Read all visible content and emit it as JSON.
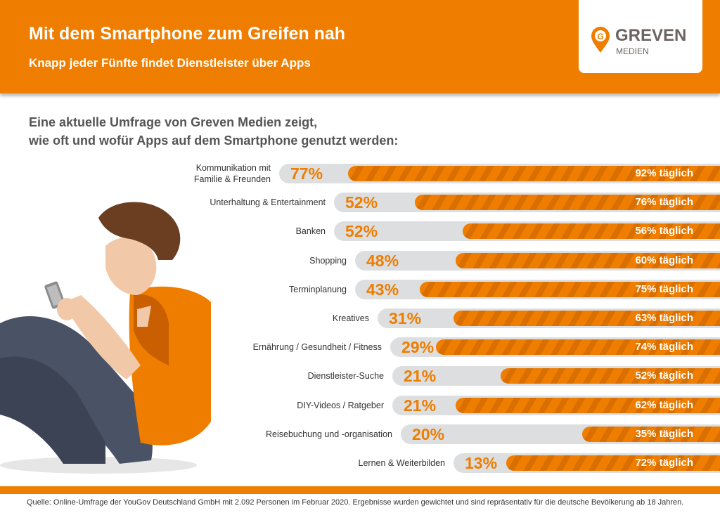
{
  "header": {
    "title": "Mit dem Smartphone zum Greifen nah",
    "subtitle": "Knapp jeder Fünfte findet Dienstleister über Apps"
  },
  "logo": {
    "name": "GREVEN",
    "sub": "MEDIEN",
    "letter": "G"
  },
  "intro": {
    "line1": "Eine aktuelle Umfrage von Greven Medien zeigt,",
    "line2": "wie oft und wofür Apps auf dem Smartphone genutzt werden:"
  },
  "colors": {
    "accent": "#ef7d00",
    "track": "#dcdee0"
  },
  "chart_data": {
    "type": "bar",
    "categories": [
      "Kommunikation mit Familie & Freunden",
      "Unterhaltung & Entertainment",
      "Banken",
      "Shopping",
      "Terminplanung",
      "Kreatives",
      "Ernährung / Gesundheit / Fitness",
      "Dienstleister-Suche",
      "DIY-Videos / Ratgeber",
      "Reisebuchung und -organisation",
      "Lernen & Weiterbilden"
    ],
    "series": [
      {
        "values": [
          77,
          52,
          52,
          48,
          43,
          31,
          29,
          21,
          21,
          20,
          13
        ]
      },
      {
        "values": [
          92,
          76,
          56,
          60,
          75,
          63,
          74,
          52,
          62,
          35,
          72
        ]
      }
    ],
    "value_labels": [
      "77%",
      "52%",
      "52%",
      "48%",
      "43%",
      "31%",
      "29%",
      "21%",
      "21%",
      "20%",
      "13%"
    ],
    "daily_labels": [
      "92% täglich",
      "76% täglich",
      "56% täglich",
      "60% täglich",
      "75% täglich",
      "63% täglich",
      "74% täglich",
      "52% täglich",
      "62% täglich",
      "35% täglich",
      "72% täglich"
    ]
  },
  "footer": {
    "source": "Quelle: Online-Umfrage der YouGov Deutschland GmbH mit 2.092 Personen im Februar 2020. Ergebnisse wurden gewichtet und sind repräsentativ für die deutsche Bevölkerung ab 18 Jahren."
  }
}
